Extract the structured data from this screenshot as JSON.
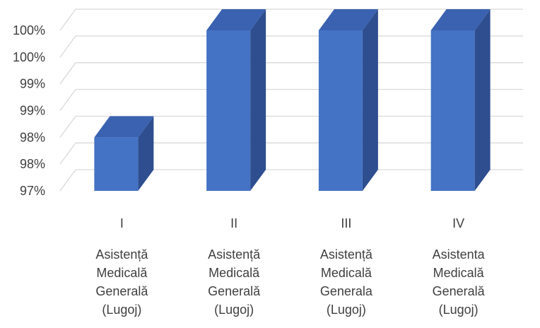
{
  "chart_data": {
    "type": "bar",
    "title": "",
    "xlabel": "",
    "ylabel": "",
    "ylim": [
      0.97,
      1.0
    ],
    "y_tick_labels": [
      "97%",
      "98%",
      "98%",
      "99%",
      "99%",
      "100%",
      "100%"
    ],
    "categories": [
      {
        "roman": "I",
        "lines": [
          "Asistență",
          "Medicală",
          "Generală",
          "(Lugoj)"
        ]
      },
      {
        "roman": "II",
        "lines": [
          "Asistență",
          "Medicală",
          "Generală",
          "(Lugoj)"
        ]
      },
      {
        "roman": "III",
        "lines": [
          "Asistență",
          "Medicală",
          "Generala",
          "(Lugoj)"
        ]
      },
      {
        "roman": "IV",
        "lines": [
          "Asistenta",
          "Medicală",
          "Generală",
          "(Lugoj)"
        ]
      }
    ],
    "values": [
      0.98,
      1.0,
      1.0,
      1.0
    ],
    "grid": true,
    "legend": "none",
    "style": "3d-column",
    "colors": {
      "front": "#4472C4",
      "side": "#2E4E8F",
      "top": "#3A62B0",
      "grid": "#D9D9D9"
    }
  }
}
